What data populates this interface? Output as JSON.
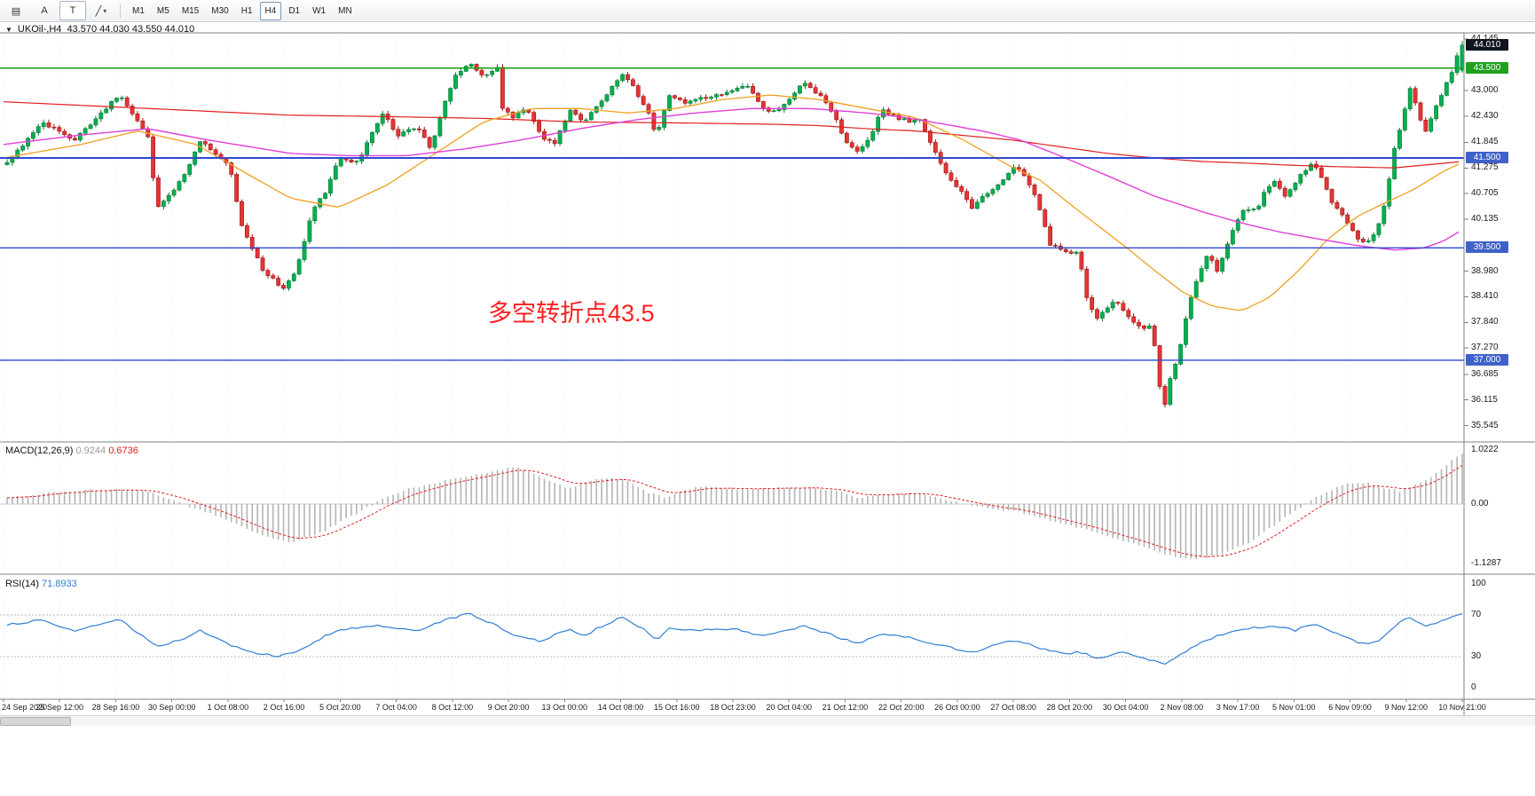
{
  "toolbar": {
    "icons": [
      {
        "name": "window-layout-icon",
        "glyph": "▤"
      },
      {
        "name": "text-label-a-icon",
        "glyph": "A"
      },
      {
        "name": "text-tool-t-icon",
        "glyph": "T"
      },
      {
        "name": "line-tool-icon",
        "glyph": "╱"
      },
      {
        "name": "dropdown-caret",
        "glyph": "▾"
      }
    ],
    "timeframes": [
      {
        "label": "M1",
        "selected": false
      },
      {
        "label": "M5",
        "selected": false
      },
      {
        "label": "M15",
        "selected": false
      },
      {
        "label": "M30",
        "selected": false
      },
      {
        "label": "H1",
        "selected": false
      },
      {
        "label": "H4",
        "selected": true
      },
      {
        "label": "D1",
        "selected": false
      },
      {
        "label": "W1",
        "selected": false
      },
      {
        "label": "MN",
        "selected": false
      }
    ]
  },
  "chart": {
    "dropdown_glyph": "▼",
    "symbol_line": "UKOil-,H4",
    "ohlc": "43.570 44.030 43.550 44.010"
  },
  "annotation": {
    "text": "多空转折点43.5",
    "color": "#ff1f1f"
  },
  "price_axis": {
    "labels": [
      "44.145",
      "43.000",
      "42.430",
      "41.845",
      "41.275",
      "40.705",
      "40.135",
      "38.980",
      "38.410",
      "37.840",
      "37.270",
      "36.685",
      "36.115",
      "35.545"
    ],
    "badges": [
      {
        "text": "44.010",
        "bg": "#10161d"
      },
      {
        "text": "43.500",
        "bg": "#1fa11f"
      },
      {
        "text": "41.500",
        "bg": "#3f62c9"
      },
      {
        "text": "39.500",
        "bg": "#3f62c9"
      },
      {
        "text": "37.000",
        "bg": "#3f62c9"
      }
    ]
  },
  "macd_panel": {
    "name": "MACD(12,26,9)",
    "v1": "0.9244",
    "v2": "0.6736",
    "axis": [
      "1.0222",
      "0.00",
      "-1.1287"
    ]
  },
  "rsi_panel": {
    "name": "RSI(14)",
    "value": "71.8933",
    "axis": [
      "100",
      "70",
      "30",
      "0"
    ]
  },
  "time_axis": {
    "labels": [
      "24 Sep 2020",
      "25 Sep 12:00",
      "28 Sep 16:00",
      "30 Sep 00:00",
      "1 Oct 08:00",
      "2 Oct 16:00",
      "5 Oct 20:00",
      "7 Oct 04:00",
      "8 Oct 12:00",
      "9 Oct 20:00",
      "13 Oct 00:00",
      "14 Oct 08:00",
      "15 Oct 16:00",
      "18 Oct 23:00",
      "20 Oct 04:00",
      "21 Oct 12:00",
      "22 Oct 20:00",
      "26 Oct 00:00",
      "27 Oct 08:00",
      "28 Oct 20:00",
      "30 Oct 04:00",
      "2 Nov 08:00",
      "3 Nov 17:00",
      "5 Nov 01:00",
      "6 Nov 09:00",
      "9 Nov 12:00",
      "10 Nov 21:00"
    ]
  },
  "colors": {
    "candle_up": "#00b050",
    "candle_up_stroke": "#067a32",
    "candle_down": "#e43535",
    "candle_down_stroke": "#9c1515",
    "ma_red": "#e02020",
    "ma_orange": "#f0a020",
    "ma_magenta": "#e040d8",
    "level_green": "#1fa11f",
    "level_blue": "#2f49d1",
    "macd_bar": "#b4b4b4",
    "macd_signal": "#e02020",
    "rsi_line": "#2f7ed8",
    "grid": "#d8d8d8",
    "frame": "#808080"
  },
  "chart_data": {
    "type": "candlestick",
    "symbol": "UKOil",
    "timeframe": "H4",
    "current_ohlc": {
      "open": 43.57,
      "high": 44.03,
      "low": 43.55,
      "close": 44.01
    },
    "price_axis_range": [
      35.281,
      44.303
    ],
    "levels": [
      {
        "price": 43.5,
        "label": "43.500",
        "color": "green"
      },
      {
        "price": 41.5,
        "label": "41.500",
        "color": "blue"
      },
      {
        "price": 39.5,
        "label": "39.500",
        "color": "blue"
      },
      {
        "price": 37.0,
        "label": "37.000",
        "color": "blue"
      }
    ],
    "price_path": [
      [
        0.3,
        41.4
      ],
      [
        2.6,
        42.3
      ],
      [
        4.9,
        41.9
      ],
      [
        7.9,
        42.9
      ],
      [
        9.9,
        42.0
      ],
      [
        10.5,
        40.4
      ],
      [
        12.2,
        41.0
      ],
      [
        13.5,
        41.9
      ],
      [
        15.5,
        41.3
      ],
      [
        16.4,
        39.9
      ],
      [
        17.8,
        39.0
      ],
      [
        19.1,
        38.6
      ],
      [
        19.7,
        38.8
      ],
      [
        20.4,
        39.3
      ],
      [
        21.1,
        40.3
      ],
      [
        22.0,
        40.7
      ],
      [
        23.0,
        41.5
      ],
      [
        24.3,
        41.4
      ],
      [
        25.3,
        42.1
      ],
      [
        26.0,
        42.5
      ],
      [
        27.0,
        42.0
      ],
      [
        28.3,
        42.2
      ],
      [
        29.3,
        41.7
      ],
      [
        30.3,
        42.8
      ],
      [
        30.9,
        43.3
      ],
      [
        32.0,
        43.6
      ],
      [
        32.9,
        43.3
      ],
      [
        33.9,
        43.5
      ],
      [
        34.2,
        42.6
      ],
      [
        34.9,
        42.4
      ],
      [
        35.9,
        42.6
      ],
      [
        36.8,
        42.0
      ],
      [
        37.8,
        41.8
      ],
      [
        38.8,
        42.6
      ],
      [
        39.8,
        42.3
      ],
      [
        41.1,
        42.8
      ],
      [
        42.4,
        43.4
      ],
      [
        43.1,
        43.1
      ],
      [
        44.1,
        42.6
      ],
      [
        44.7,
        42.0
      ],
      [
        45.7,
        42.9
      ],
      [
        46.7,
        42.7
      ],
      [
        47.4,
        42.8
      ],
      [
        48.7,
        42.9
      ],
      [
        50.0,
        43.0
      ],
      [
        51.0,
        43.1
      ],
      [
        52.0,
        42.6
      ],
      [
        53.0,
        42.5
      ],
      [
        53.9,
        42.8
      ],
      [
        54.9,
        43.2
      ],
      [
        55.9,
        42.9
      ],
      [
        56.9,
        42.5
      ],
      [
        57.6,
        41.9
      ],
      [
        58.6,
        41.6
      ],
      [
        59.5,
        42.0
      ],
      [
        60.2,
        42.6
      ],
      [
        61.2,
        42.4
      ],
      [
        62.2,
        42.3
      ],
      [
        62.8,
        42.4
      ],
      [
        63.5,
        41.9
      ],
      [
        64.5,
        41.2
      ],
      [
        65.5,
        40.8
      ],
      [
        66.4,
        40.4
      ],
      [
        67.4,
        40.7
      ],
      [
        68.4,
        41.0
      ],
      [
        69.4,
        41.3
      ],
      [
        70.4,
        40.9
      ],
      [
        71.1,
        40.3
      ],
      [
        71.7,
        39.6
      ],
      [
        72.7,
        39.4
      ],
      [
        73.7,
        39.4
      ],
      [
        74.3,
        38.3
      ],
      [
        75.0,
        37.9
      ],
      [
        76.0,
        38.3
      ],
      [
        76.6,
        38.2
      ],
      [
        77.3,
        37.9
      ],
      [
        78.0,
        37.7
      ],
      [
        78.6,
        37.8
      ],
      [
        78.9,
        37.3
      ],
      [
        79.3,
        36.3
      ],
      [
        79.6,
        36.0
      ],
      [
        79.9,
        36.5
      ],
      [
        80.6,
        37.2
      ],
      [
        81.3,
        38.3
      ],
      [
        81.9,
        38.9
      ],
      [
        82.6,
        39.4
      ],
      [
        83.2,
        39.0
      ],
      [
        83.9,
        39.6
      ],
      [
        84.5,
        40.1
      ],
      [
        85.2,
        40.4
      ],
      [
        85.9,
        40.3
      ],
      [
        86.5,
        40.8
      ],
      [
        87.2,
        41.0
      ],
      [
        87.8,
        40.6
      ],
      [
        88.5,
        40.9
      ],
      [
        89.1,
        41.2
      ],
      [
        89.8,
        41.4
      ],
      [
        90.5,
        41.0
      ],
      [
        91.1,
        40.5
      ],
      [
        91.8,
        40.2
      ],
      [
        92.4,
        39.9
      ],
      [
        93.1,
        39.6
      ],
      [
        93.8,
        39.7
      ],
      [
        94.4,
        40.1
      ],
      [
        94.7,
        40.5
      ],
      [
        95.4,
        41.8
      ],
      [
        96.1,
        42.6
      ],
      [
        96.4,
        43.1
      ],
      [
        97.0,
        42.5
      ],
      [
        97.4,
        42.0
      ],
      [
        98.0,
        42.5
      ],
      [
        98.7,
        43.0
      ],
      [
        99.3,
        43.4
      ],
      [
        99.9,
        44.0
      ]
    ],
    "ma_red": [
      [
        0,
        42.75
      ],
      [
        6.6,
        42.65
      ],
      [
        13.2,
        42.55
      ],
      [
        19.7,
        42.45
      ],
      [
        26.3,
        42.42
      ],
      [
        29.6,
        42.4
      ],
      [
        32.9,
        42.38
      ],
      [
        39.5,
        42.3
      ],
      [
        46.1,
        42.28
      ],
      [
        52.6,
        42.25
      ],
      [
        55.9,
        42.22
      ],
      [
        59.2,
        42.15
      ],
      [
        62.5,
        42.1
      ],
      [
        65.8,
        42.0
      ],
      [
        69.1,
        41.9
      ],
      [
        72.4,
        41.75
      ],
      [
        75.7,
        41.6
      ],
      [
        78.9,
        41.5
      ],
      [
        82.2,
        41.42
      ],
      [
        85.5,
        41.38
      ],
      [
        88.8,
        41.33
      ],
      [
        92.1,
        41.3
      ],
      [
        95.4,
        41.28
      ],
      [
        100,
        41.42
      ]
    ],
    "ma_magenta": [
      [
        0,
        41.8
      ],
      [
        5,
        42.0
      ],
      [
        9.9,
        42.15
      ],
      [
        14,
        41.9
      ],
      [
        19.7,
        41.6
      ],
      [
        23.7,
        41.55
      ],
      [
        27.6,
        41.55
      ],
      [
        31.6,
        41.7
      ],
      [
        35.5,
        41.9
      ],
      [
        39.5,
        42.15
      ],
      [
        43.4,
        42.35
      ],
      [
        47.4,
        42.5
      ],
      [
        51.3,
        42.6
      ],
      [
        55.3,
        42.6
      ],
      [
        59.2,
        42.5
      ],
      [
        61.8,
        42.4
      ],
      [
        64.5,
        42.25
      ],
      [
        67.1,
        42.1
      ],
      [
        69.7,
        41.9
      ],
      [
        72.4,
        41.55
      ],
      [
        75.7,
        41.1
      ],
      [
        78.9,
        40.65
      ],
      [
        82.2,
        40.3
      ],
      [
        84.9,
        40.05
      ],
      [
        87.5,
        39.85
      ],
      [
        90.1,
        39.7
      ],
      [
        92.8,
        39.55
      ],
      [
        95.4,
        39.45
      ],
      [
        97.4,
        39.5
      ],
      [
        98.7,
        39.65
      ],
      [
        100,
        39.9
      ]
    ],
    "ma_orange": [
      [
        0,
        41.5
      ],
      [
        5.3,
        41.8
      ],
      [
        9.2,
        42.1
      ],
      [
        13.2,
        41.8
      ],
      [
        16.4,
        41.2
      ],
      [
        19.7,
        40.6
      ],
      [
        23,
        40.4
      ],
      [
        26.3,
        40.9
      ],
      [
        29.6,
        41.6
      ],
      [
        32.9,
        42.3
      ],
      [
        36.2,
        42.6
      ],
      [
        39.5,
        42.6
      ],
      [
        42.8,
        42.5
      ],
      [
        46.1,
        42.6
      ],
      [
        49.3,
        42.8
      ],
      [
        52.6,
        42.9
      ],
      [
        55.9,
        42.8
      ],
      [
        59.2,
        42.6
      ],
      [
        62.5,
        42.4
      ],
      [
        65.8,
        41.9
      ],
      [
        69.1,
        41.3
      ],
      [
        71.1,
        41.0
      ],
      [
        73,
        40.5
      ],
      [
        75,
        40.0
      ],
      [
        77,
        39.5
      ],
      [
        78.9,
        39.0
      ],
      [
        80.9,
        38.5
      ],
      [
        82.9,
        38.2
      ],
      [
        84.9,
        38.1
      ],
      [
        86.8,
        38.4
      ],
      [
        88.8,
        39.0
      ],
      [
        90.8,
        39.7
      ],
      [
        92.8,
        40.2
      ],
      [
        94.7,
        40.5
      ],
      [
        96.7,
        40.8
      ],
      [
        98.7,
        41.2
      ],
      [
        100,
        41.4
      ]
    ],
    "macd": {
      "current": 0.9244,
      "signal_current": 0.6736,
      "range": [
        -1.1287,
        1.0222
      ],
      "path": [
        [
          0,
          0.1
        ],
        [
          3.3,
          0.22
        ],
        [
          6.6,
          0.28
        ],
        [
          9.9,
          0.25
        ],
        [
          11.8,
          0.05
        ],
        [
          13.8,
          -0.15
        ],
        [
          15.8,
          -0.35
        ],
        [
          17.8,
          -0.6
        ],
        [
          19.7,
          -0.72
        ],
        [
          21.7,
          -0.55
        ],
        [
          23.7,
          -0.25
        ],
        [
          25.7,
          0.05
        ],
        [
          27.6,
          0.28
        ],
        [
          29.6,
          0.4
        ],
        [
          31.6,
          0.52
        ],
        [
          33.6,
          0.62
        ],
        [
          34.9,
          0.7
        ],
        [
          36.2,
          0.6
        ],
        [
          37.5,
          0.42
        ],
        [
          38.8,
          0.3
        ],
        [
          40.1,
          0.42
        ],
        [
          41.4,
          0.5
        ],
        [
          42.8,
          0.45
        ],
        [
          44.1,
          0.22
        ],
        [
          45.4,
          0.12
        ],
        [
          46.7,
          0.28
        ],
        [
          48,
          0.33
        ],
        [
          49.3,
          0.3
        ],
        [
          51.3,
          0.28
        ],
        [
          53.3,
          0.3
        ],
        [
          55.3,
          0.32
        ],
        [
          57.2,
          0.25
        ],
        [
          58.6,
          0.12
        ],
        [
          60.5,
          0.18
        ],
        [
          62.5,
          0.22
        ],
        [
          64.5,
          0.1
        ],
        [
          65.8,
          0.0
        ],
        [
          67.8,
          -0.1
        ],
        [
          69.7,
          -0.15
        ],
        [
          71.7,
          -0.3
        ],
        [
          73.7,
          -0.45
        ],
        [
          75.7,
          -0.6
        ],
        [
          77.6,
          -0.75
        ],
        [
          79.6,
          -0.95
        ],
        [
          81.6,
          -1.05
        ],
        [
          83.6,
          -0.95
        ],
        [
          85.5,
          -0.7
        ],
        [
          86.8,
          -0.45
        ],
        [
          88.2,
          -0.2
        ],
        [
          89.5,
          0.05
        ],
        [
          90.8,
          0.25
        ],
        [
          92.1,
          0.38
        ],
        [
          93.4,
          0.4
        ],
        [
          94.7,
          0.3
        ],
        [
          95.7,
          0.25
        ],
        [
          96.7,
          0.35
        ],
        [
          97.7,
          0.5
        ],
        [
          98.7,
          0.68
        ],
        [
          99.9,
          0.95
        ]
      ]
    },
    "rsi": {
      "current": 71.8933,
      "period": 14,
      "levels": [
        70,
        30
      ],
      "path": [
        [
          0,
          60
        ],
        [
          2.6,
          65
        ],
        [
          4.9,
          55
        ],
        [
          7.9,
          66
        ],
        [
          10.5,
          40
        ],
        [
          12.2,
          46
        ],
        [
          13.5,
          55
        ],
        [
          16.4,
          36
        ],
        [
          18.8,
          30
        ],
        [
          20.4,
          36
        ],
        [
          22,
          50
        ],
        [
          23,
          55
        ],
        [
          25.3,
          60
        ],
        [
          28.3,
          55
        ],
        [
          30.3,
          65
        ],
        [
          32,
          72
        ],
        [
          32.9,
          65
        ],
        [
          33.9,
          60
        ],
        [
          34.9,
          50
        ],
        [
          36.8,
          45
        ],
        [
          38.8,
          57
        ],
        [
          39.8,
          50
        ],
        [
          41.1,
          60
        ],
        [
          42.4,
          68
        ],
        [
          44.1,
          55
        ],
        [
          44.7,
          45
        ],
        [
          45.7,
          58
        ],
        [
          47.4,
          55
        ],
        [
          50,
          57
        ],
        [
          52,
          50
        ],
        [
          53.9,
          55
        ],
        [
          54.9,
          60
        ],
        [
          56.9,
          50
        ],
        [
          58.6,
          42
        ],
        [
          60.2,
          52
        ],
        [
          62.2,
          48
        ],
        [
          64.5,
          40
        ],
        [
          66.4,
          34
        ],
        [
          68.4,
          43
        ],
        [
          69.4,
          46
        ],
        [
          71.1,
          38
        ],
        [
          72.7,
          32
        ],
        [
          73.7,
          35
        ],
        [
          75,
          28
        ],
        [
          76.6,
          34
        ],
        [
          78,
          30
        ],
        [
          79.6,
          22
        ],
        [
          80.6,
          31
        ],
        [
          81.9,
          42
        ],
        [
          83.2,
          50
        ],
        [
          84.5,
          55
        ],
        [
          85.9,
          58
        ],
        [
          87.2,
          60
        ],
        [
          88.5,
          55
        ],
        [
          89.8,
          62
        ],
        [
          91.8,
          50
        ],
        [
          93.1,
          42
        ],
        [
          94.4,
          46
        ],
        [
          95.4,
          60
        ],
        [
          96.4,
          68
        ],
        [
          97.4,
          60
        ],
        [
          98.4,
          63
        ],
        [
          99.1,
          68
        ],
        [
          99.9,
          72
        ]
      ]
    }
  }
}
